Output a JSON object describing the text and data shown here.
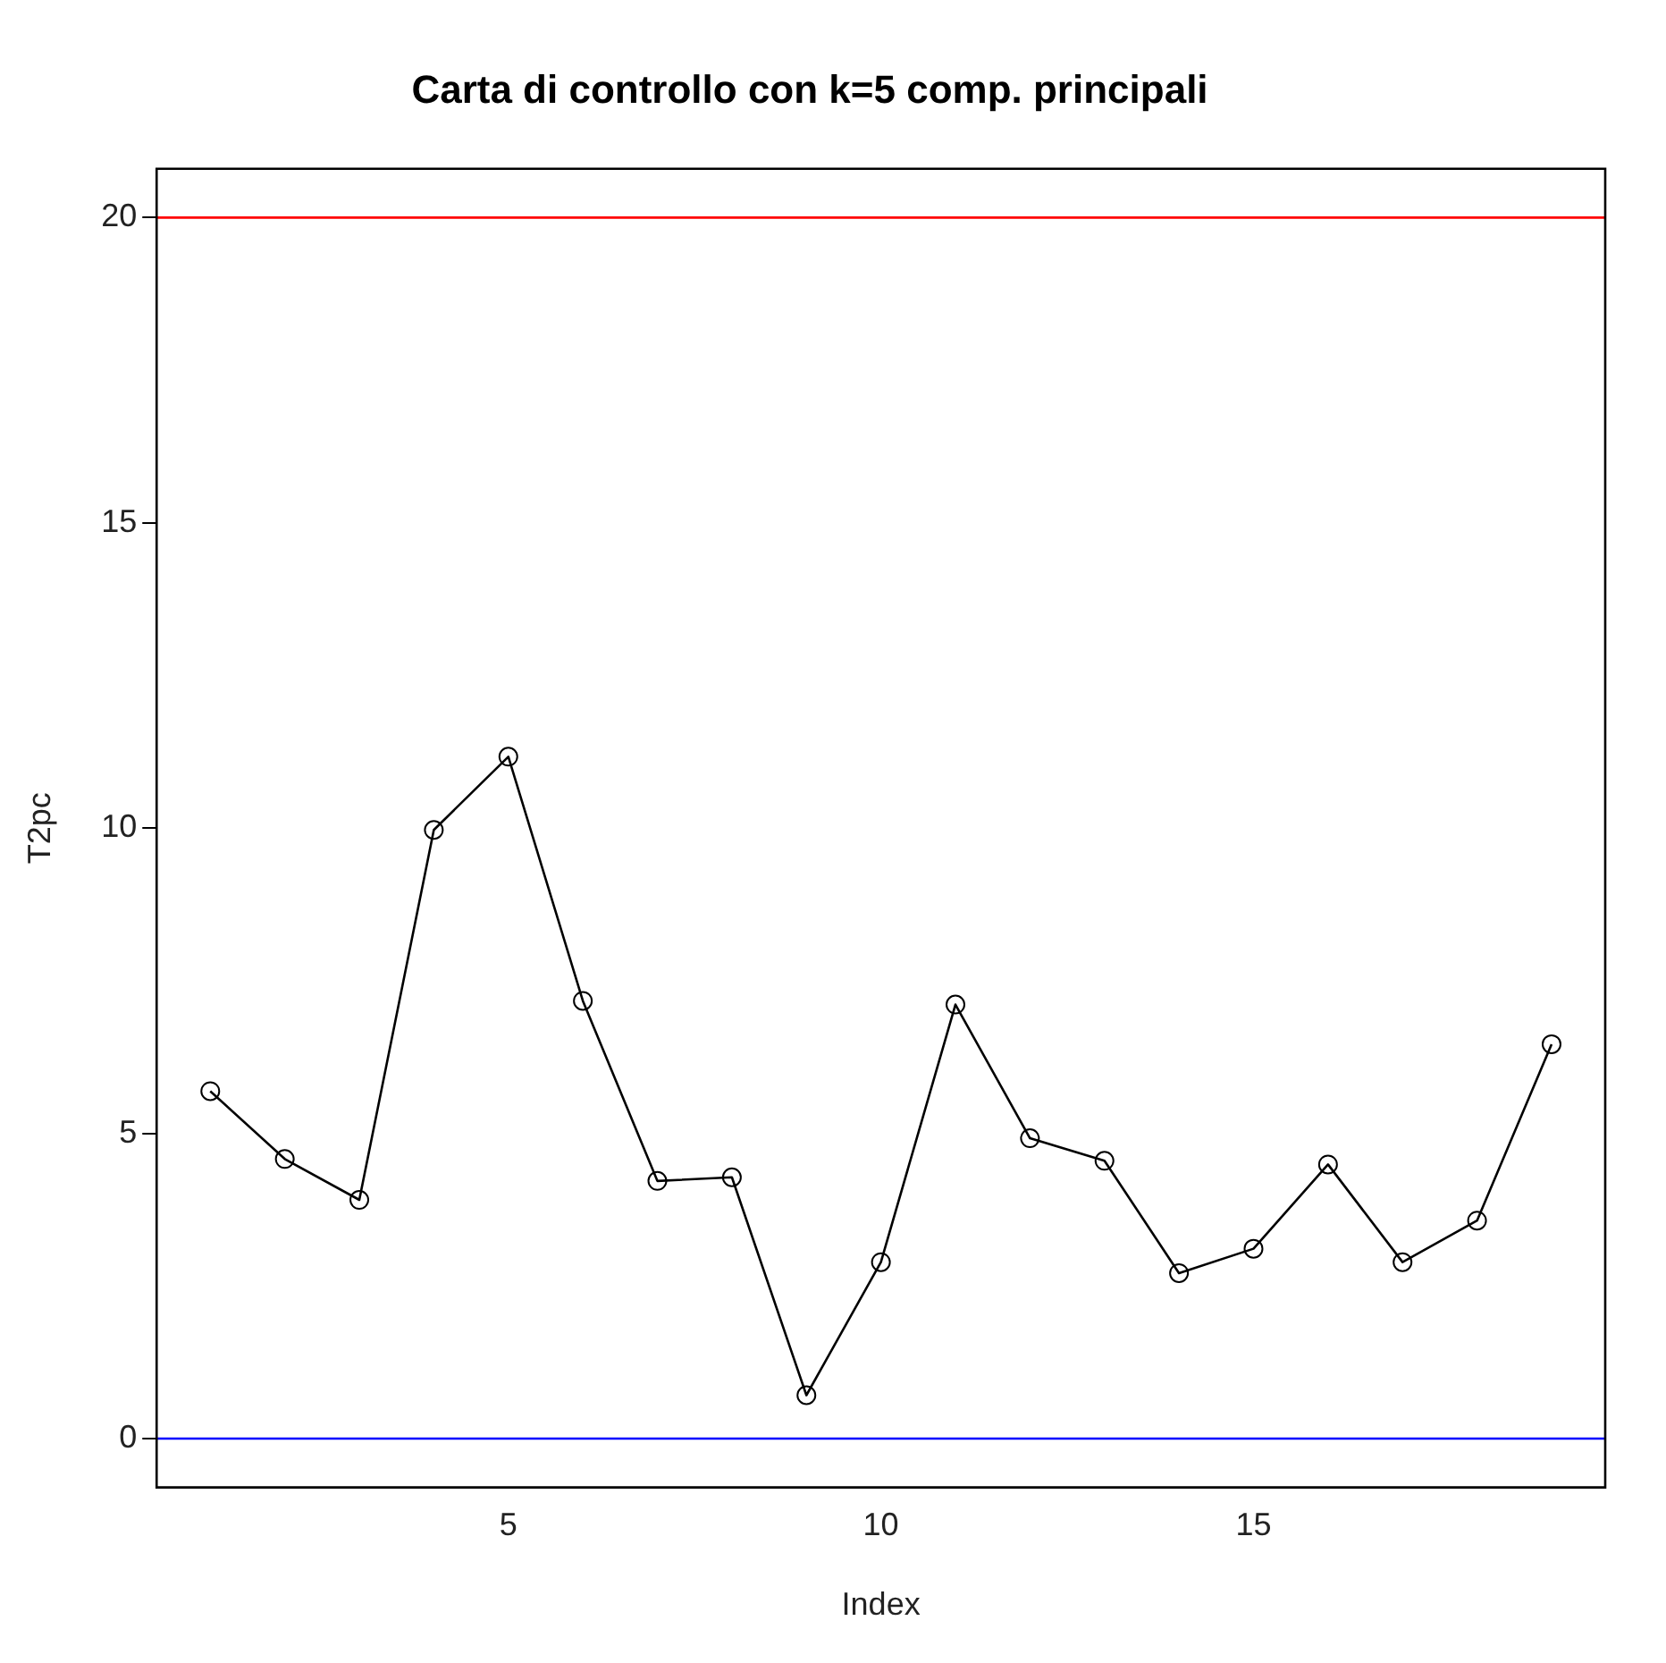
{
  "chart_data": {
    "type": "line",
    "title": "Carta di controllo con k=5 comp. principali",
    "xlabel": "Index",
    "ylabel": "T2pc",
    "x": [
      1,
      2,
      3,
      4,
      5,
      6,
      7,
      8,
      9,
      10,
      11,
      12,
      13,
      14,
      15,
      16,
      17,
      18,
      19
    ],
    "series": [
      {
        "color": "#000000",
        "values": [
          5.69,
          4.58,
          3.91,
          9.97,
          11.17,
          7.17,
          4.22,
          4.28,
          0.71,
          2.89,
          7.11,
          4.92,
          4.55,
          2.71,
          3.11,
          4.49,
          2.89,
          3.57,
          6.46
        ]
      }
    ],
    "xlim": [
      0.28,
      19.72
    ],
    "ylim": [
      -0.8,
      20.8
    ],
    "xticks": [
      5,
      10,
      15
    ],
    "yticks": [
      0,
      5,
      10,
      15,
      20
    ],
    "ref_lines": [
      {
        "axis": "y",
        "value": 20,
        "color": "#ff0000"
      },
      {
        "axis": "y",
        "value": 0,
        "color": "#0000ff"
      }
    ],
    "marker": "circle",
    "line_style": "solid",
    "grid": false,
    "legend": false
  }
}
